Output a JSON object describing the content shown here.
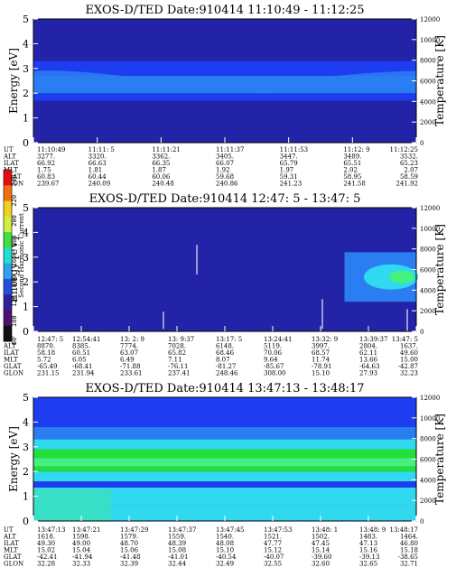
{
  "colorbar": {
    "label": "Second Harmonic Current",
    "ticks": [
      "240",
      "220",
      "200",
      "180",
      "160",
      "140",
      "120",
      "100",
      "80"
    ]
  },
  "colors": {
    "deep_blue": "#2323a8",
    "mid_blue": "#1e3cf0",
    "light_blue": "#2a7ef2",
    "cyan_band": "#30d8f0",
    "green": "#22e03a",
    "light_green": "#46f07c",
    "white_line": "#e8e8f0"
  },
  "panels": [
    {
      "title": "EXOS-D/TED   Date:910414   11:10:49 - 11:12:25",
      "ylabel": "Energy [eV]",
      "y2label": "Temperature [K]",
      "row_labels": [
        "UT",
        "ALT",
        "ILAT",
        "MLT",
        "GLAT",
        "GLON"
      ],
      "columns": [
        [
          "11:10:49",
          "3277.",
          "66.92",
          "1.75",
          "60.83",
          "239.67"
        ],
        [
          "11:11: 5",
          "3320.",
          "66.63",
          "1.81",
          "60.44",
          "240.09"
        ],
        [
          "11:11:21",
          "3362.",
          "66.35",
          "1.87",
          "60.06",
          "240.48"
        ],
        [
          "11:11:37",
          "3405.",
          "66.07",
          "1.92",
          "59.68",
          "240.86"
        ],
        [
          "11:11:53",
          "3447.",
          "65.79",
          "1.97",
          "59.31",
          "241.23"
        ],
        [
          "11:12: 9",
          "3489.",
          "65.51",
          "2.02",
          "58.95",
          "241.58"
        ],
        [
          "11:12:25",
          "3532.",
          "65.23",
          "2.07",
          "58.59",
          "241.92"
        ]
      ]
    },
    {
      "title": "EXOS-D/TED   Date:910414   12:47: 5 - 13:47: 5",
      "ylabel": "Energy [eV]",
      "y2label": "Temperature [K]",
      "row_labels": [
        "UT",
        "ALT",
        "ILAT",
        "MLT",
        "GLAT",
        "GLON"
      ],
      "columns": [
        [
          "12:47: 5",
          "8870.",
          "58.18",
          "5.72",
          "-65.49",
          "231.15"
        ],
        [
          "12:54:41",
          "8385.",
          "60.51",
          "6.05",
          "-68.41",
          "231.94"
        ],
        [
          "13: 2: 9",
          "7774.",
          "63.07",
          "6.49",
          "-71.88",
          "233.61"
        ],
        [
          "13: 9:37",
          "7028.",
          "65.82",
          "7.11",
          "-76.11",
          "237.41"
        ],
        [
          "13:17: 5",
          "6148.",
          "68.46",
          "8.07",
          "-81.27",
          "248.46"
        ],
        [
          "13:24:41",
          "5119.",
          "70.06",
          "9.64",
          "-85.67",
          "308.00"
        ],
        [
          "13:32: 9",
          "3997.",
          "68.57",
          "11.74",
          "-78.91",
          "15.10"
        ],
        [
          "13:39:37",
          "2804.",
          "62.11",
          "13.66",
          "-64.63",
          "27.93"
        ],
        [
          "13:47: 5",
          "1637.",
          "49.60",
          "15.00",
          "-42.87",
          "32.23"
        ]
      ]
    },
    {
      "title": "EXOS-D/TED   Date:910414   13:47:13 - 13:48:17",
      "ylabel": "Energy [eV]",
      "y2label": "Temperature [K]",
      "row_labels": [
        "UT",
        "ALT",
        "ILAT",
        "MLT",
        "GLAT",
        "GLON"
      ],
      "columns": [
        [
          "13:47:13",
          "1618.",
          "49.30",
          "15.02",
          "-42.41",
          "32.28"
        ],
        [
          "13:47:21",
          "1598.",
          "49.00",
          "15.04",
          "-41.94",
          "32.33"
        ],
        [
          "13:47:29",
          "1579.",
          "48.70",
          "15.06",
          "-41.48",
          "32.39"
        ],
        [
          "13:47:37",
          "1559.",
          "48.39",
          "15.08",
          "-41.01",
          "32.44"
        ],
        [
          "13:47:45",
          "1540.",
          "48.08",
          "15.10",
          "-40.54",
          "32.49"
        ],
        [
          "13:47:53",
          "1521.",
          "47.77",
          "15.12",
          "-40.07",
          "32.55"
        ],
        [
          "13:48: 1",
          "1502.",
          "47.45",
          "15.14",
          "-39.60",
          "32.60"
        ],
        [
          "13:48: 9",
          "1483.",
          "47.13",
          "15.16",
          "-39.13",
          "32.65"
        ],
        [
          "13:48:17",
          "1464.",
          "46.80",
          "15.18",
          "-38.65",
          "32.71"
        ]
      ]
    }
  ],
  "chart_data": [
    {
      "type": "heatmap",
      "title": "EXOS-D/TED   Date:910414   11:10:49 - 11:12:25",
      "ylabel": "Energy [eV]",
      "y2label": "Temperature [K]",
      "ylim": [
        0,
        5
      ],
      "y2lim": [
        0,
        12000
      ],
      "yticks": [
        0,
        1,
        2,
        3,
        4,
        5
      ],
      "y2ticks": [
        0,
        2000,
        4000,
        6000,
        8000,
        10000,
        12000
      ],
      "bands": [
        {
          "from": 0.0,
          "to": 1.7,
          "level": "deep"
        },
        {
          "from": 1.7,
          "to": 2.0,
          "level": "mid"
        },
        {
          "from": 2.0,
          "to": 2.7,
          "level": "light"
        },
        {
          "from": 2.7,
          "to": 3.3,
          "level": "mid"
        },
        {
          "from": 3.3,
          "to": 5.0,
          "level": "deep"
        }
      ]
    },
    {
      "type": "heatmap",
      "title": "EXOS-D/TED   Date:910414   12:47: 5 - 13:47: 5",
      "ylabel": "Energy [eV]",
      "y2label": "Temperature [K]",
      "ylim": [
        0,
        5
      ],
      "y2lim": [
        0,
        12000
      ],
      "yticks": [
        0,
        1,
        2,
        3,
        4,
        5
      ],
      "y2ticks": [
        0,
        2000,
        4000,
        6000,
        8000,
        10000,
        12000
      ],
      "bands": [
        {
          "from": 0.0,
          "to": 5.0,
          "level": "deep"
        }
      ],
      "hot_region": {
        "start_col": 6.5,
        "from": 1.2,
        "to": 3.2
      }
    },
    {
      "type": "heatmap",
      "title": "EXOS-D/TED   Date:910414   13:47:13 - 13:48:17",
      "ylabel": "Energy [eV]",
      "y2label": "Temperature [K]",
      "ylim": [
        0,
        5
      ],
      "y2lim": [
        0,
        12000
      ],
      "yticks": [
        0,
        1,
        2,
        3,
        4,
        5
      ],
      "y2ticks": [
        0,
        2000,
        4000,
        6000,
        8000,
        10000,
        12000
      ],
      "bands": [
        {
          "from": 0.0,
          "to": 0.6,
          "level": "cyan"
        },
        {
          "from": 0.6,
          "to": 1.35,
          "level": "cyan"
        },
        {
          "from": 1.35,
          "to": 1.6,
          "level": "mid"
        },
        {
          "from": 1.6,
          "to": 2.0,
          "level": "cyan"
        },
        {
          "from": 2.0,
          "to": 2.2,
          "level": "green"
        },
        {
          "from": 2.2,
          "to": 2.55,
          "level": "light_green"
        },
        {
          "from": 2.55,
          "to": 2.9,
          "level": "green"
        },
        {
          "from": 2.9,
          "to": 3.3,
          "level": "cyan"
        },
        {
          "from": 3.3,
          "to": 3.8,
          "level": "light"
        },
        {
          "from": 3.8,
          "to": 5.0,
          "level": "mid"
        }
      ]
    }
  ]
}
